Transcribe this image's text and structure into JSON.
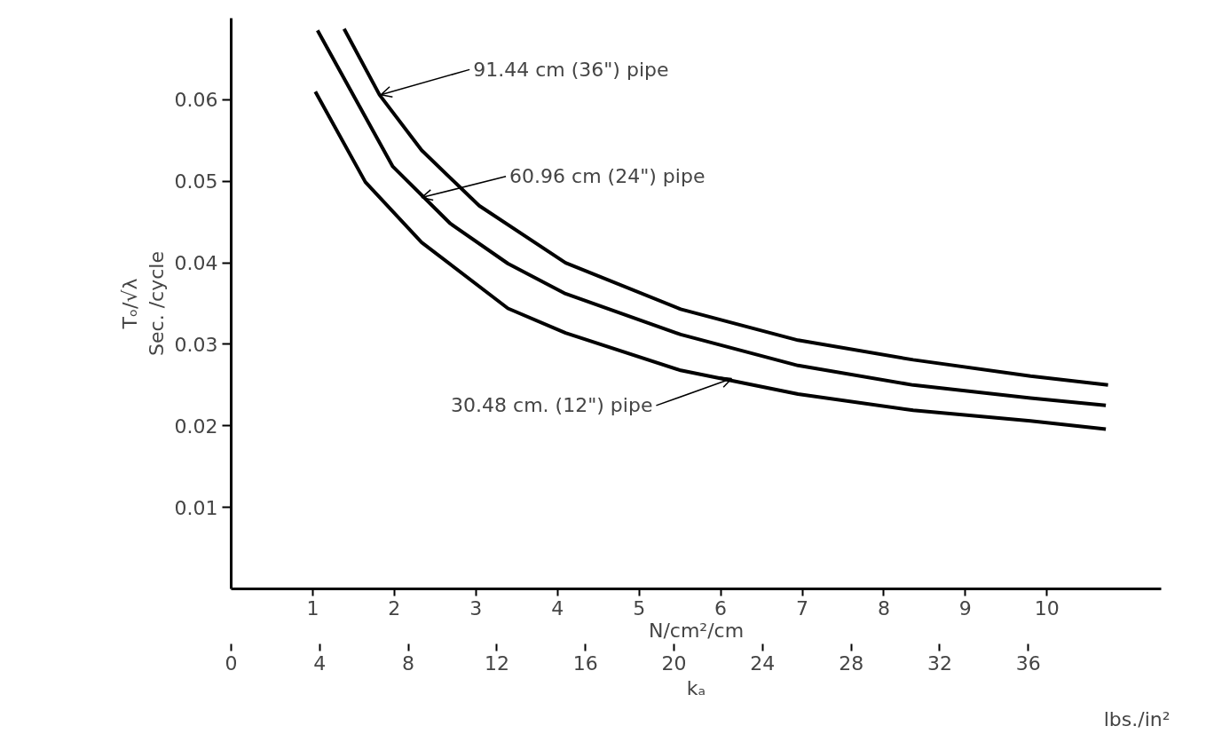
{
  "chart_data": {
    "type": "line",
    "xlabel": "kₐ",
    "ylabel": "Tₒ/√λ\nSec. /cycle",
    "x2label": "N/cm²/cm",
    "xlim": [
      0,
      42
    ],
    "xticks": [
      0,
      4,
      8,
      12,
      16,
      20,
      24,
      28,
      32,
      36
    ],
    "x2lim": [
      0,
      11.4
    ],
    "x2ticks": [
      1,
      2,
      3,
      4,
      5,
      6,
      7,
      8,
      9,
      10
    ],
    "ylim": [
      0,
      0.07
    ],
    "yticks": [
      0.01,
      0.02,
      0.03,
      0.04,
      0.05,
      0.06
    ],
    "series": [
      {
        "color": "#000000",
        "x": [
          5.1,
          6.7,
          8.6,
          11.2,
          15.1,
          20.3,
          25.6,
          30.8,
          36.1,
          39.6
        ],
        "values": [
          0.0687,
          0.0606,
          0.0538,
          0.047,
          0.04,
          0.0343,
          0.0305,
          0.0281,
          0.0261,
          0.025
        ]
      },
      {
        "color": "#000000",
        "x": [
          3.9,
          7.3,
          9.9,
          12.5,
          15.1,
          20.3,
          25.6,
          30.8,
          36.1,
          39.5
        ],
        "values": [
          0.0685,
          0.0518,
          0.0448,
          0.0399,
          0.0362,
          0.0312,
          0.0274,
          0.025,
          0.0234,
          0.0225
        ]
      },
      {
        "color": "#000000",
        "x": [
          3.8,
          6.06,
          8.6,
          12.5,
          15.1,
          20.3,
          25.6,
          30.8,
          36.1,
          39.5
        ],
        "values": [
          0.061,
          0.0499,
          0.0425,
          0.0344,
          0.0314,
          0.0268,
          0.0239,
          0.0219,
          0.0206,
          0.0196
        ]
      }
    ],
    "annotations": [
      {
        "text": "91.44 cm (36\") pipe",
        "x": 6.76,
        "y": 0.0606
      },
      {
        "text": "60.96 cm (24\") pipe",
        "x": 8.6,
        "y": 0.048
      },
      {
        "text": "30.48 cm. (12\") pipe",
        "x": 22.6,
        "y": 0.0258
      },
      "lbs./in²"
    ]
  }
}
